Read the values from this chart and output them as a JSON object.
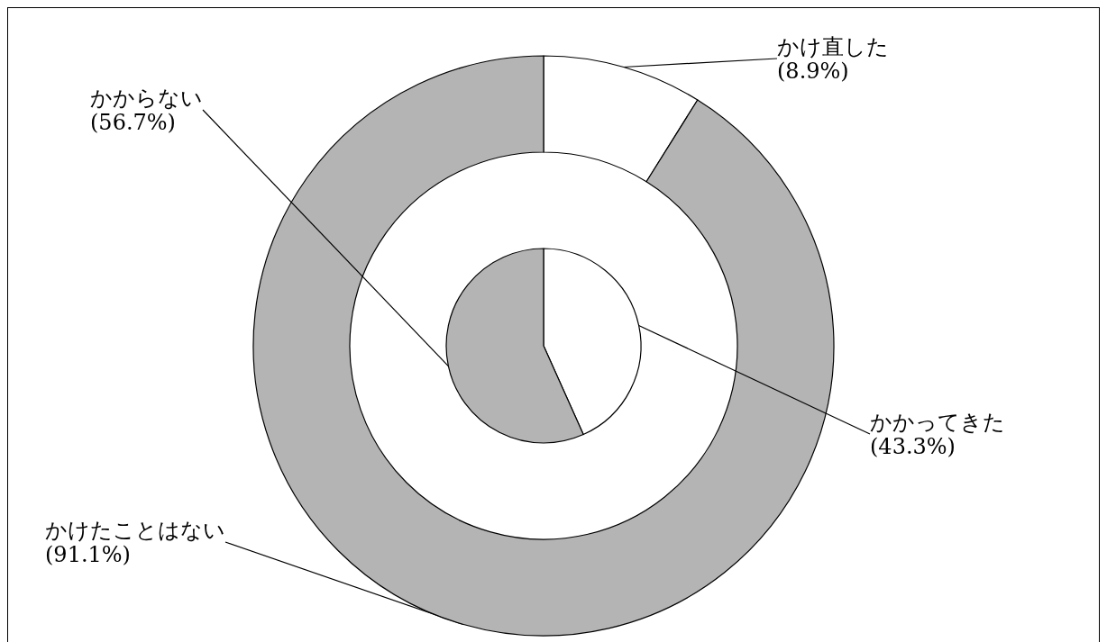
{
  "chart_data": [
    {
      "type": "donut",
      "categories": [
        "かけ直した",
        "かけたことはない"
      ],
      "values": [
        8.9,
        91.1
      ],
      "colors": [
        "#ffffff",
        "#b4b4b4"
      ],
      "value_labels": [
        "(8.9%)",
        "(91.1%)"
      ]
    },
    {
      "type": "pie",
      "categories": [
        "かかってきた",
        "かからない"
      ],
      "values": [
        43.3,
        56.7
      ],
      "colors": [
        "#ffffff",
        "#b4b4b4"
      ],
      "value_labels": [
        "(43.3%)",
        "(56.7%)"
      ]
    }
  ]
}
